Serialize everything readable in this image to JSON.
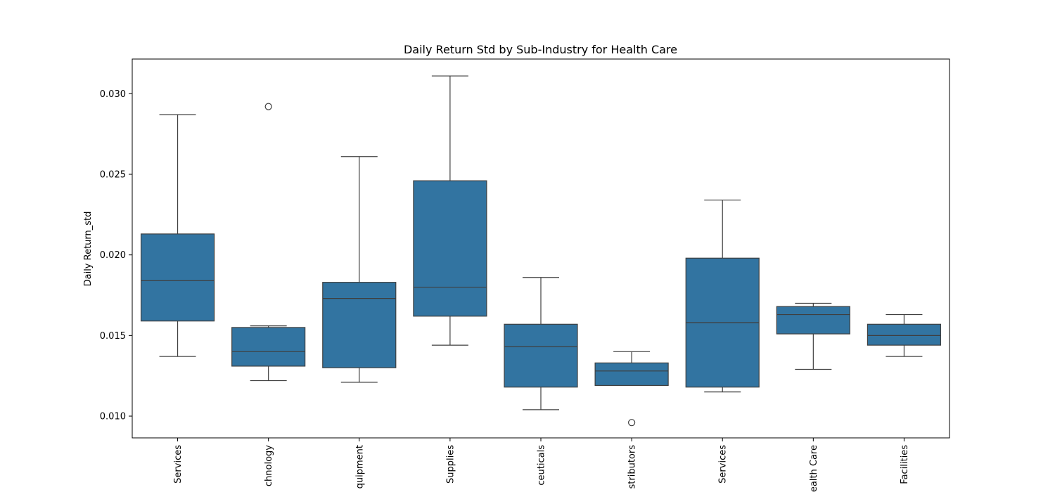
{
  "chart_data": {
    "type": "boxplot",
    "title": "Daily Return Std by Sub-Industry for Health Care",
    "xlabel": "",
    "ylabel": "Daily Return_std",
    "ylim": [
      0.00865,
      0.03215
    ],
    "yticks": [
      "0.010",
      "0.015",
      "0.020",
      "0.025",
      "0.030"
    ],
    "yticks_values": [
      0.01,
      0.015,
      0.02,
      0.025,
      0.03
    ],
    "grid": false,
    "box_color": "#3274a1",
    "edge_color": "#3f3f3f",
    "categories": [
      {
        "label": "Health Care Services",
        "visible_label": "Services",
        "whisker_low": 0.0137,
        "q1": 0.0159,
        "median": 0.0184,
        "q3": 0.0213,
        "whisker_high": 0.0287,
        "outliers": []
      },
      {
        "label": "Health Care Technology",
        "visible_label": "chnology",
        "whisker_low": 0.0122,
        "q1": 0.0131,
        "median": 0.014,
        "q3": 0.0155,
        "whisker_high": 0.0156,
        "outliers": [
          0.0292
        ]
      },
      {
        "label": "Health Care Equipment",
        "visible_label": "quipment",
        "whisker_low": 0.0121,
        "q1": 0.013,
        "median": 0.0173,
        "q3": 0.0183,
        "whisker_high": 0.0261,
        "outliers": []
      },
      {
        "label": "Health Care Supplies",
        "visible_label": "Supplies",
        "whisker_low": 0.0144,
        "q1": 0.0162,
        "median": 0.018,
        "q3": 0.0246,
        "whisker_high": 0.0311,
        "outliers": []
      },
      {
        "label": "Pharmaceuticals",
        "visible_label": "ceuticals",
        "whisker_low": 0.0104,
        "q1": 0.0118,
        "median": 0.0143,
        "q3": 0.0157,
        "whisker_high": 0.0186,
        "outliers": []
      },
      {
        "label": "Health Care Distributors",
        "visible_label": "stributors",
        "whisker_low": 0.0119,
        "q1": 0.0119,
        "median": 0.0128,
        "q3": 0.0133,
        "whisker_high": 0.014,
        "outliers": [
          0.0096
        ]
      },
      {
        "label": "Life Sciences Tools & Services",
        "visible_label": "Services",
        "whisker_low": 0.0115,
        "q1": 0.0118,
        "median": 0.0158,
        "q3": 0.0198,
        "whisker_high": 0.0234,
        "outliers": []
      },
      {
        "label": "Managed Health Care",
        "visible_label": "ealth Care",
        "whisker_low": 0.0129,
        "q1": 0.0151,
        "median": 0.0163,
        "q3": 0.0168,
        "whisker_high": 0.017,
        "outliers": []
      },
      {
        "label": "Health Care Facilities",
        "visible_label": "Facilities",
        "whisker_low": 0.0137,
        "q1": 0.0144,
        "median": 0.015,
        "q3": 0.0157,
        "whisker_high": 0.0163,
        "outliers": []
      }
    ]
  }
}
